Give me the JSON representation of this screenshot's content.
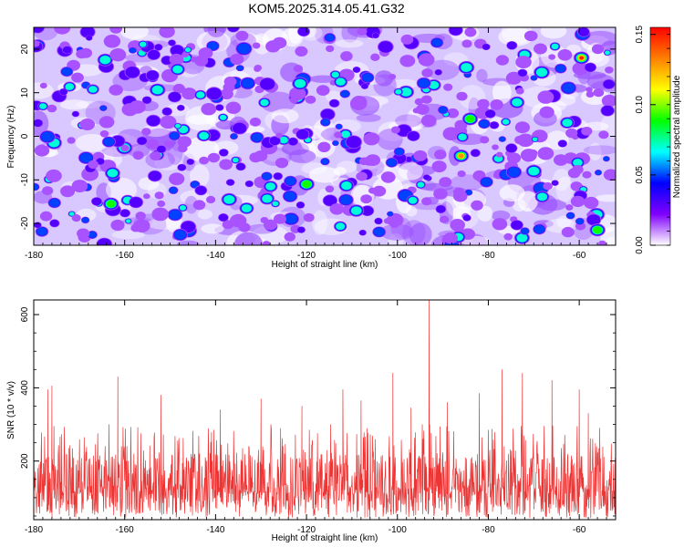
{
  "title": "KOM5.2025.314.05.41.G32",
  "chart_data": [
    {
      "type": "heatmap",
      "title": "KOM5.2025.314.05.41.G32",
      "xlabel": "Height of straight line (km)",
      "ylabel": "Frequency (Hz)",
      "xlim": [
        -180,
        -52
      ],
      "ylim": [
        -25,
        25
      ],
      "x_ticks": [
        -180,
        -160,
        -140,
        -120,
        -100,
        -80,
        -60
      ],
      "y_ticks": [
        -20,
        -10,
        0,
        10,
        20
      ],
      "colorbar": {
        "label": "Normalized spectral amplitude",
        "range": [
          0.0,
          0.155
        ],
        "ticks": [
          "0.00",
          "0.05",
          "0.10",
          "0.15"
        ],
        "tick_values": [
          0.0,
          0.05,
          0.1,
          0.15
        ],
        "colors": [
          "#ffffff",
          "#8000ff",
          "#0000ff",
          "#00ffff",
          "#00ff00",
          "#ffff00",
          "#ff8000",
          "#ff0000"
        ]
      },
      "hotspots": [
        {
          "x": -59.5,
          "y": 18.0,
          "value": 0.155
        },
        {
          "x": -86.0,
          "y": -4.5,
          "value": 0.14
        },
        {
          "x": -163.0,
          "y": -15.5,
          "value": 0.09
        },
        {
          "x": -56.0,
          "y": -21.5,
          "value": 0.1
        },
        {
          "x": -84.0,
          "y": 4.0,
          "value": 0.1
        },
        {
          "x": -120.0,
          "y": -11.0,
          "value": 0.09
        },
        {
          "x": -70.0,
          "y": -8.0,
          "value": 0.08
        },
        {
          "x": -137.0,
          "y": -14.5,
          "value": 0.07
        }
      ]
    },
    {
      "type": "line",
      "xlabel": "Height of straight line (km)",
      "ylabel": "SNR (10 * v/v)",
      "xlim": [
        -180,
        -52
      ],
      "ylim": [
        40,
        640
      ],
      "x_ticks": [
        -180,
        -160,
        -140,
        -120,
        -100,
        -80,
        -60
      ],
      "y_ticks": [
        200,
        400,
        600
      ],
      "series": [
        {
          "name": "SNR",
          "color": "#ee3333",
          "baseline_mean": 150,
          "noise_range": [
            45,
            300
          ],
          "peaks": [
            {
              "x": -93.0,
              "y": 640
            },
            {
              "x": -77.0,
              "y": 450
            },
            {
              "x": -161.5,
              "y": 430
            },
            {
              "x": -101.0,
              "y": 440
            },
            {
              "x": -72.5,
              "y": 440
            },
            {
              "x": -66.0,
              "y": 420
            },
            {
              "x": -176.0,
              "y": 405
            },
            {
              "x": -176.9,
              "y": 395
            },
            {
              "x": -112.0,
              "y": 395
            },
            {
              "x": -60.0,
              "y": 395
            },
            {
              "x": -152.0,
              "y": 380
            },
            {
              "x": -130.0,
              "y": 370
            },
            {
              "x": -82.0,
              "y": 385
            },
            {
              "x": -89.0,
              "y": 360
            },
            {
              "x": -139.0,
              "y": 340
            },
            {
              "x": -121.0,
              "y": 350
            },
            {
              "x": -108.0,
              "y": 365
            },
            {
              "x": -97.0,
              "y": 345
            },
            {
              "x": -58.0,
              "y": 330
            }
          ]
        }
      ]
    }
  ]
}
